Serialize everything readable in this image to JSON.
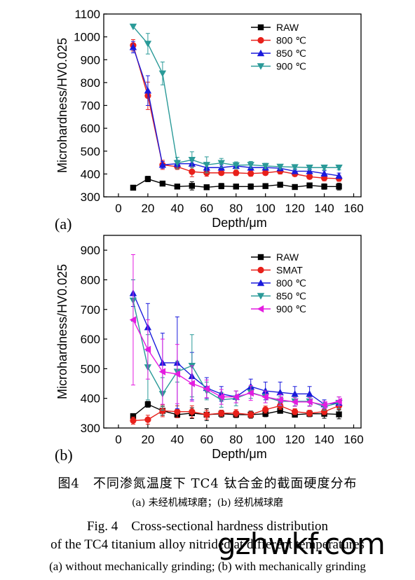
{
  "chart_data": [
    {
      "type": "line",
      "panel_label": "(a)",
      "xlabel": "Depth/μm",
      "ylabel": "Microhardness/HV0.025",
      "xlim": [
        -10,
        165
      ],
      "ylim": [
        300,
        1100
      ],
      "xticks": [
        0,
        20,
        40,
        60,
        80,
        100,
        120,
        140,
        160
      ],
      "yticks": [
        300,
        400,
        500,
        600,
        700,
        800,
        900,
        1000,
        1100
      ],
      "legend_position": "top-right",
      "x": [
        10,
        20,
        30,
        40,
        50,
        60,
        70,
        80,
        90,
        100,
        110,
        120,
        130,
        140,
        150
      ],
      "series": [
        {
          "name": "RAW",
          "color": "#000000",
          "marker": "square",
          "values": [
            340,
            378,
            358,
            345,
            348,
            342,
            347,
            345,
            345,
            347,
            353,
            343,
            350,
            345,
            345
          ],
          "errors": [
            0,
            12,
            8,
            8,
            18,
            10,
            12,
            10,
            12,
            8,
            8,
            6,
            10,
            12,
            15
          ]
        },
        {
          "name": "800 ℃",
          "color": "#e8201a",
          "marker": "circle",
          "values": [
            963,
            742,
            440,
            432,
            410,
            405,
            405,
            405,
            402,
            405,
            412,
            400,
            388,
            382,
            380
          ],
          "errors": [
            25,
            60,
            20,
            12,
            22,
            15,
            10,
            12,
            12,
            10,
            12,
            10,
            10,
            12,
            12
          ]
        },
        {
          "name": "850 ℃",
          "color": "#1a1adc",
          "marker": "triangle-up",
          "values": [
            955,
            765,
            440,
            445,
            445,
            428,
            428,
            435,
            428,
            428,
            425,
            412,
            412,
            402,
            392
          ],
          "errors": [
            25,
            65,
            15,
            15,
            12,
            15,
            12,
            12,
            12,
            10,
            10,
            10,
            10,
            12,
            12
          ]
        },
        {
          "name": "900 ℃",
          "color": "#2a9a98",
          "marker": "triangle-down",
          "values": [
            1045,
            970,
            840,
            448,
            462,
            440,
            448,
            438,
            440,
            435,
            432,
            430,
            428,
            428,
            428
          ],
          "errors": [
            0,
            45,
            50,
            25,
            35,
            35,
            20,
            15,
            15,
            12,
            10,
            10,
            10,
            10,
            10
          ]
        }
      ]
    },
    {
      "type": "line",
      "panel_label": "(b)",
      "xlabel": "Depth/μm",
      "ylabel": "Microhardness/HV0.025",
      "xlim": [
        -10,
        165
      ],
      "ylim": [
        300,
        950
      ],
      "xticks": [
        0,
        20,
        40,
        60,
        80,
        100,
        120,
        140,
        160
      ],
      "yticks": [
        300,
        400,
        500,
        600,
        700,
        800,
        900
      ],
      "legend_position": "top-right",
      "x": [
        10,
        20,
        30,
        40,
        50,
        60,
        70,
        80,
        90,
        100,
        110,
        120,
        130,
        140,
        150
      ],
      "series": [
        {
          "name": "RAW",
          "color": "#000000",
          "marker": "square",
          "values": [
            340,
            380,
            358,
            345,
            350,
            345,
            348,
            345,
            345,
            348,
            358,
            345,
            348,
            348,
            346
          ],
          "errors": [
            5,
            10,
            15,
            10,
            18,
            20,
            12,
            10,
            12,
            10,
            8,
            8,
            10,
            15,
            15
          ]
        },
        {
          "name": "SMAT",
          "color": "#e8201a",
          "marker": "circle",
          "values": [
            325,
            328,
            358,
            355,
            355,
            345,
            350,
            350,
            345,
            362,
            375,
            355,
            350,
            355,
            375
          ],
          "errors": [
            12,
            15,
            20,
            20,
            20,
            15,
            10,
            12,
            10,
            12,
            12,
            10,
            10,
            10,
            12
          ]
        },
        {
          "name": "800 ℃",
          "color": "#1a1adc",
          "marker": "triangle-up",
          "values": [
            755,
            640,
            520,
            520,
            475,
            435,
            415,
            405,
            440,
            425,
            420,
            415,
            415,
            380,
            385
          ],
          "errors": [
            45,
            80,
            100,
            155,
            80,
            35,
            25,
            20,
            25,
            30,
            35,
            25,
            25,
            15,
            20
          ]
        },
        {
          "name": "850 ℃",
          "color": "#2a9a98",
          "marker": "triangle-down",
          "values": [
            730,
            505,
            415,
            490,
            510,
            425,
            395,
            400,
            420,
            405,
            390,
            390,
            390,
            372,
            385
          ],
          "errors": [
            70,
            110,
            55,
            35,
            105,
            30,
            25,
            25,
            20,
            20,
            15,
            15,
            15,
            12,
            20
          ]
        },
        {
          "name": "900 ℃",
          "color": "#e41ce0",
          "marker": "triangle-left",
          "values": [
            665,
            565,
            490,
            482,
            450,
            432,
            405,
            405,
            418,
            405,
            395,
            388,
            388,
            378,
            390
          ],
          "errors": [
            220,
            100,
            110,
            100,
            60,
            30,
            25,
            20,
            25,
            20,
            18,
            15,
            15,
            12,
            15
          ]
        }
      ]
    }
  ],
  "caption": {
    "cn_title": "图4　不同渗氮温度下 TC4 钛合金的截面硬度分布",
    "cn_sub": "(a) 未经机械球磨；(b) 经机械球磨",
    "en_title": "Fig. 4　Cross-sectional hardness distribution",
    "en_line2": "of the TC4 titanium alloy nitrided at different temperatures",
    "en_sub": "(a)  without mechanically grinding;  (b)  with mechanically grinding"
  },
  "watermark": "gzhwkf.com"
}
